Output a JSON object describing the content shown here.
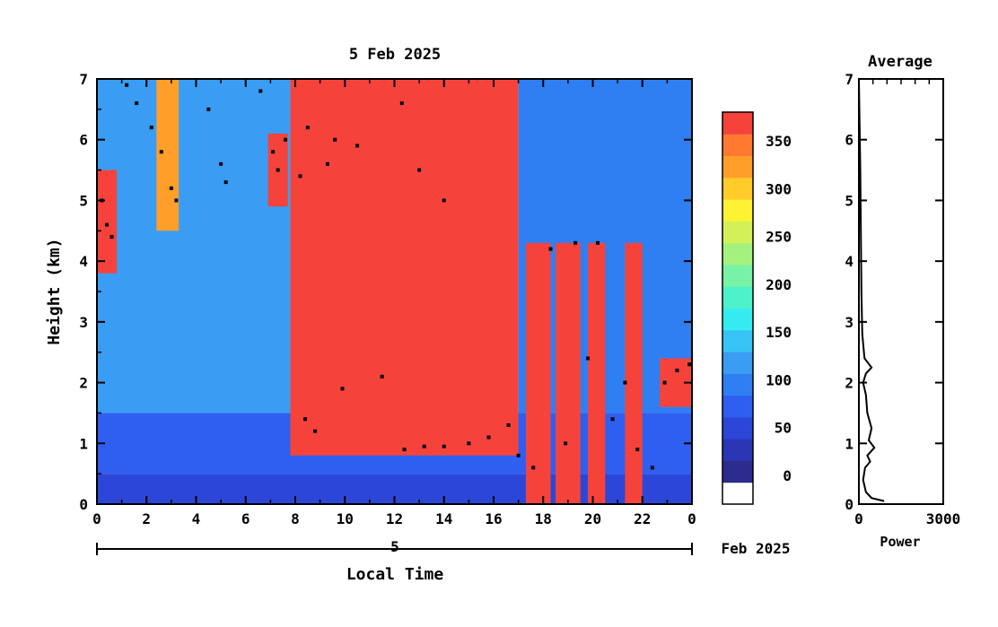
{
  "chart_data": [
    {
      "type": "heatmap",
      "title": "5 Feb 2025",
      "xlabel": "Local Time",
      "ylabel": "Height (km)",
      "x_ticks": [
        "0",
        "2",
        "4",
        "6",
        "8",
        "10",
        "12",
        "14",
        "16",
        "18",
        "20",
        "22",
        "0"
      ],
      "y_ticks": [
        "0",
        "1",
        "2",
        "3",
        "4",
        "5",
        "6",
        "7"
      ],
      "xlim": [
        0,
        24
      ],
      "ylim": [
        0,
        7
      ],
      "date_axis": {
        "day_label": "5",
        "month_label": "Feb 2025"
      },
      "colorbar": {
        "ticks": [
          "0",
          "50",
          "100",
          "150",
          "200",
          "250",
          "300",
          "350"
        ],
        "range": [
          -30,
          380
        ],
        "colors": [
          "#ffffff",
          "#2c2c8c",
          "#2a36b4",
          "#2c46d8",
          "#2f5ff0",
          "#2f7ff2",
          "#3a9df3",
          "#37c3f4",
          "#35ebf0",
          "#4ef2c9",
          "#78f2a6",
          "#a4f27e",
          "#d4f059",
          "#fff333",
          "#ffcc2a",
          "#ff9f2a",
          "#ff7a30",
          "#f5433c"
        ]
      },
      "grid": false,
      "regions": [
        {
          "x": [
            0,
            24
          ],
          "y": [
            0,
            0.5
          ],
          "value": 40
        },
        {
          "x": [
            0,
            24
          ],
          "y": [
            0.5,
            1.5
          ],
          "value": 80
        },
        {
          "x": [
            0,
            7.8
          ],
          "y": [
            1.5,
            7
          ],
          "value": 110
        },
        {
          "x": [
            7.8,
            17
          ],
          "y": [
            0.8,
            7
          ],
          "value": 360
        },
        {
          "x": [
            17,
            24
          ],
          "y": [
            1.5,
            7
          ],
          "value": 100
        },
        {
          "x": [
            0,
            0.8
          ],
          "y": [
            3.8,
            5.5
          ],
          "value": 360
        },
        {
          "x": [
            2.4,
            3.3
          ],
          "y": [
            4.5,
            7
          ],
          "value": 330
        },
        {
          "x": [
            6.9,
            7.7
          ],
          "y": [
            4.9,
            6.1
          ],
          "value": 360
        },
        {
          "x": [
            17.3,
            18.3
          ],
          "y": [
            0,
            4.3
          ],
          "value": 360
        },
        {
          "x": [
            18.5,
            19.5
          ],
          "y": [
            0,
            4.3
          ],
          "value": 360
        },
        {
          "x": [
            19.8,
            20.5
          ],
          "y": [
            0,
            4.3
          ],
          "value": 360
        },
        {
          "x": [
            21.3,
            22
          ],
          "y": [
            0,
            4.3
          ],
          "value": 360
        },
        {
          "x": [
            22.7,
            24
          ],
          "y": [
            1.6,
            2.4
          ],
          "value": 360
        }
      ],
      "markers": [
        [
          0.2,
          5.0
        ],
        [
          0.4,
          4.6
        ],
        [
          0.6,
          4.4
        ],
        [
          1.2,
          6.9
        ],
        [
          1.6,
          6.6
        ],
        [
          2.2,
          6.2
        ],
        [
          2.6,
          5.8
        ],
        [
          3.0,
          5.2
        ],
        [
          3.2,
          5.0
        ],
        [
          4.5,
          6.5
        ],
        [
          5.0,
          5.6
        ],
        [
          5.2,
          5.3
        ],
        [
          6.6,
          6.8
        ],
        [
          7.1,
          5.8
        ],
        [
          7.3,
          5.5
        ],
        [
          7.6,
          6.0
        ],
        [
          8.2,
          5.4
        ],
        [
          8.5,
          6.2
        ],
        [
          9.3,
          5.6
        ],
        [
          9.6,
          6.0
        ],
        [
          10.5,
          5.9
        ],
        [
          11.5,
          2.1
        ],
        [
          12.3,
          6.6
        ],
        [
          13.0,
          5.5
        ],
        [
          14.0,
          5.0
        ],
        [
          8.4,
          1.4
        ],
        [
          8.8,
          1.2
        ],
        [
          9.9,
          1.9
        ],
        [
          12.4,
          0.9
        ],
        [
          13.2,
          0.95
        ],
        [
          14.0,
          0.95
        ],
        [
          15.0,
          1.0
        ],
        [
          15.8,
          1.1
        ],
        [
          16.6,
          1.3
        ],
        [
          17.0,
          0.8
        ],
        [
          17.6,
          0.6
        ],
        [
          18.3,
          4.2
        ],
        [
          18.9,
          1.0
        ],
        [
          19.3,
          4.3
        ],
        [
          19.8,
          2.4
        ],
        [
          20.2,
          4.3
        ],
        [
          20.8,
          1.4
        ],
        [
          21.3,
          2.0
        ],
        [
          21.8,
          0.9
        ],
        [
          22.4,
          0.6
        ],
        [
          22.9,
          2.0
        ],
        [
          23.4,
          2.2
        ],
        [
          23.9,
          2.3
        ]
      ]
    },
    {
      "type": "line",
      "title": "Average",
      "xlabel": "Power",
      "ylabel": "",
      "x_ticks": [
        "0",
        "3000"
      ],
      "y_ticks": [
        "0",
        "1",
        "2",
        "3",
        "4",
        "5",
        "6",
        "7"
      ],
      "xlim": [
        0,
        3000
      ],
      "ylim": [
        0,
        7
      ],
      "series": [
        {
          "x": [
            900,
            450,
            250,
            150,
            220,
            400,
            300,
            550,
            350,
            450,
            300,
            250,
            150,
            250,
            450,
            200,
            120,
            90,
            70,
            60,
            50,
            0
          ],
          "y": [
            0.05,
            0.1,
            0.2,
            0.4,
            0.6,
            0.7,
            0.8,
            0.93,
            1.05,
            1.25,
            1.5,
            1.8,
            2.0,
            2.15,
            2.25,
            2.4,
            2.8,
            3.5,
            4.5,
            5.0,
            5.5,
            7.0
          ]
        }
      ]
    }
  ]
}
